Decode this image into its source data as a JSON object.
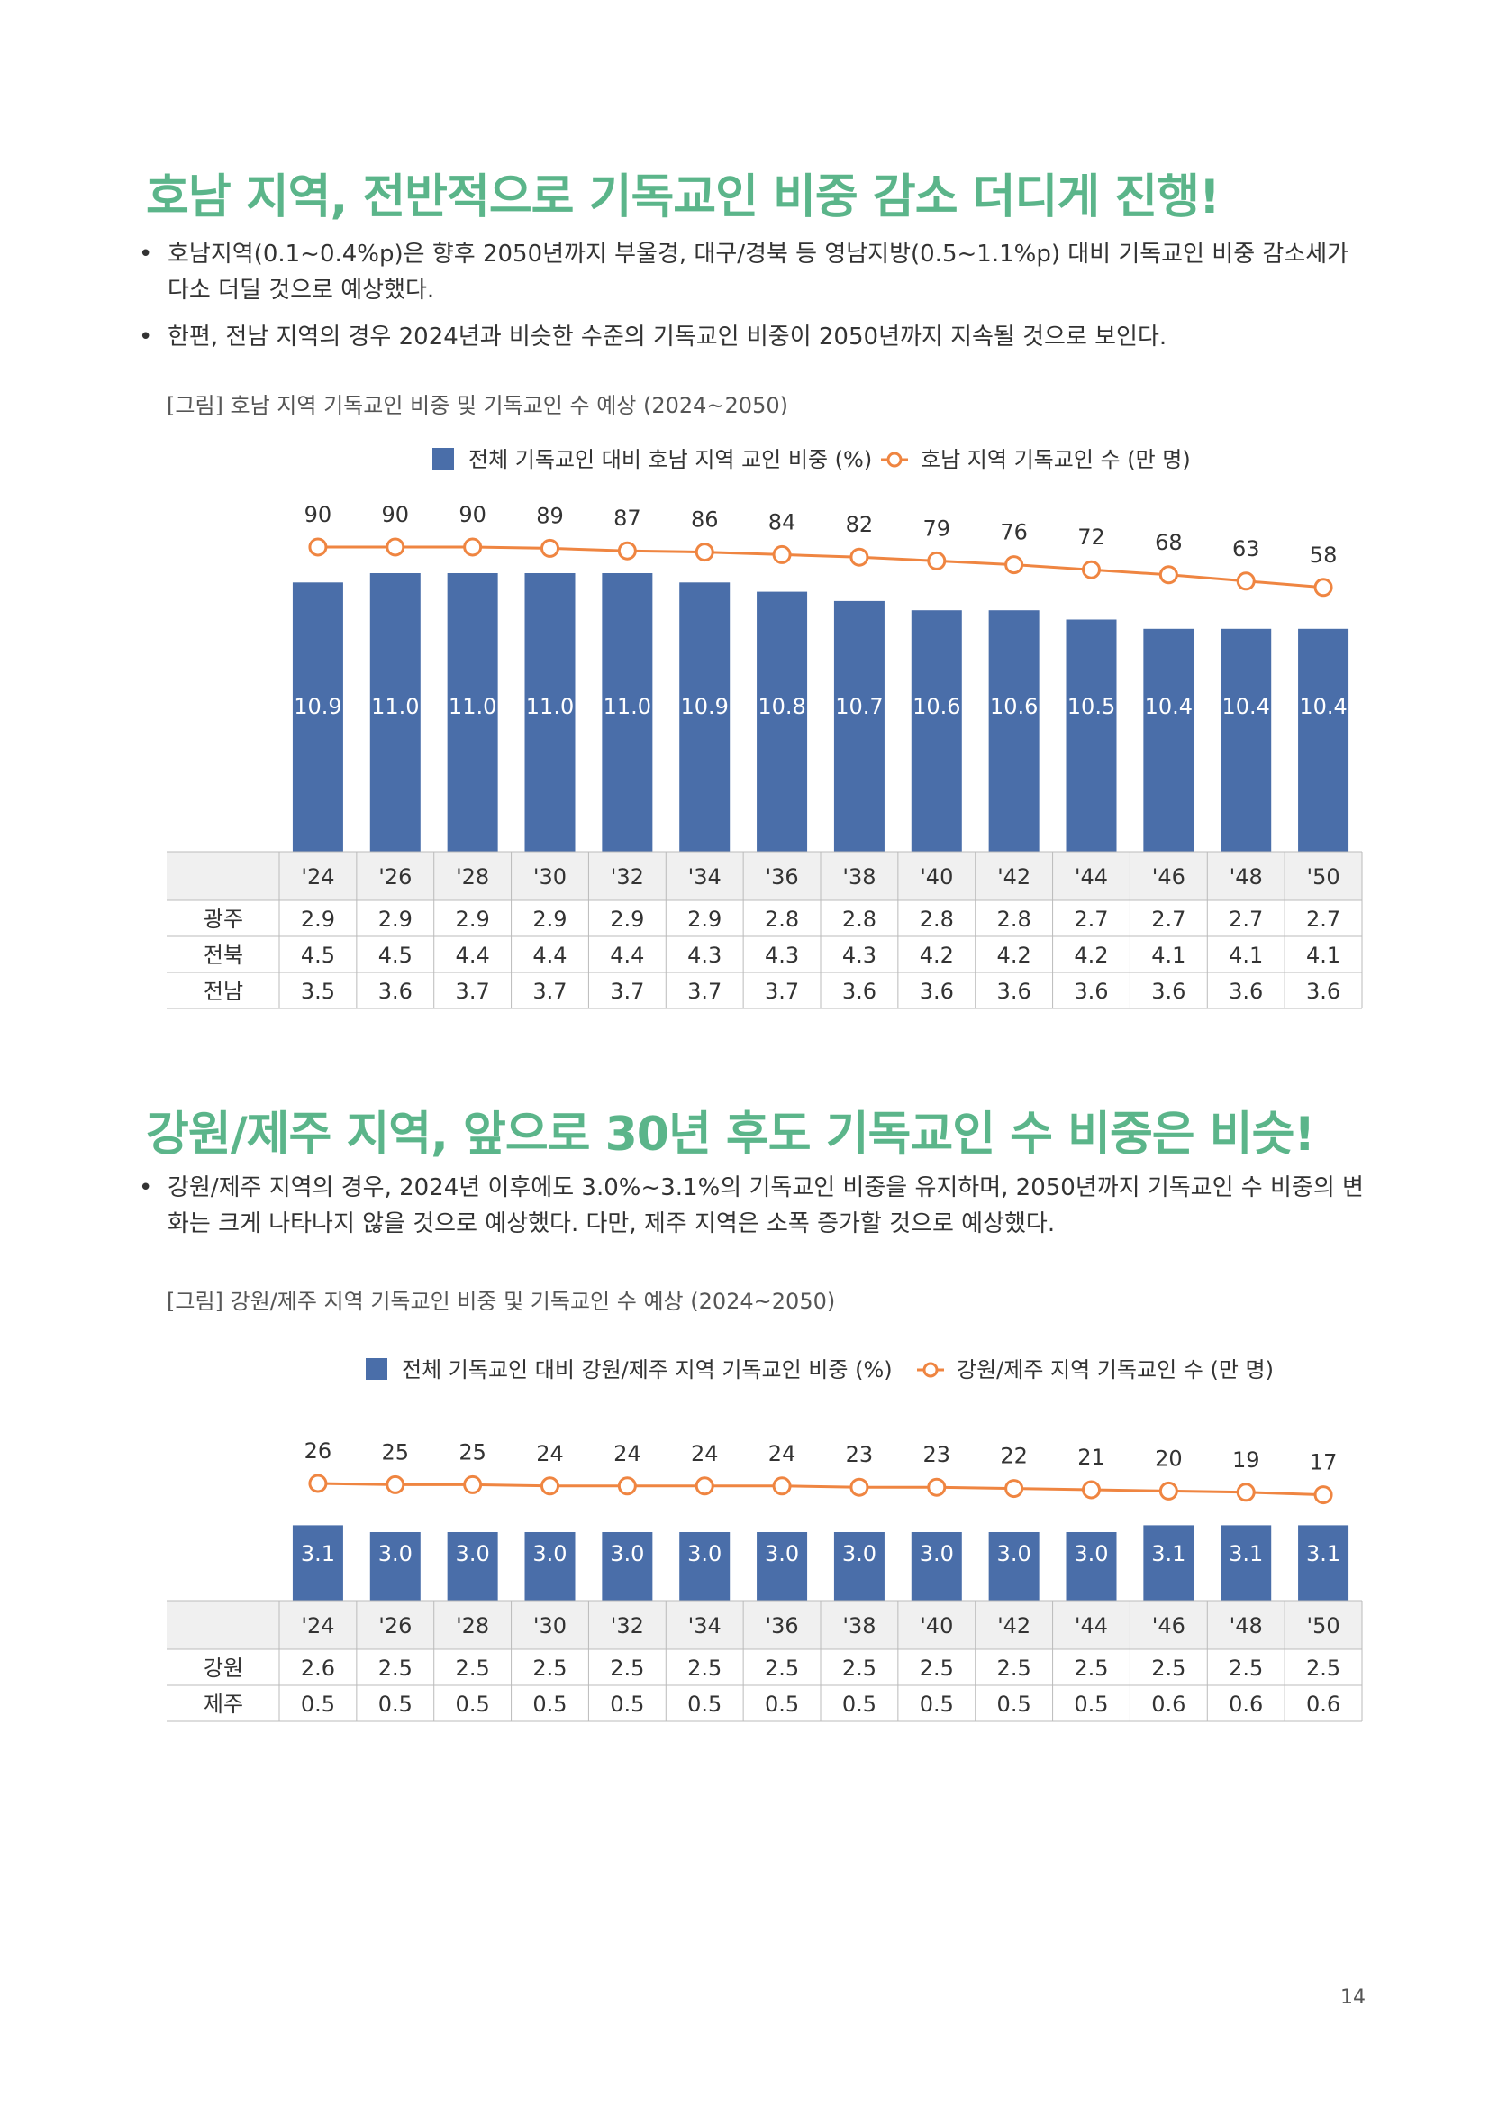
{
  "section1": {
    "heading": "호남 지역, 전반적으로 기독교인 비중 감소 더디게 진행!",
    "bullets": [
      "호남지역(0.1~0.4%p)은 향후 2050년까지 부울경, 대구/경북 등 영남지방(0.5~1.1%p) 대비 기독교인 비중 감소세가 다소 더딜 것으로 예상했다.",
      "한편, 전남 지역의 경우 2024년과 비슷한 수준의 기독교인 비중이 2050년까지 지속될 것으로 보인다."
    ],
    "caption": "[그림] 호남 지역 기독교인 비중 및 기독교인 수 예상 (2024~2050)"
  },
  "section2": {
    "heading": "강원/제주 지역, 앞으로 30년 후도 기독교인 수 비중은 비슷!",
    "bullets": [
      "강원/제주 지역의 경우, 2024년 이후에도 3.0%~3.1%의 기독교인 비중을 유지하며, 2050년까지 기독교인 수 비중의 변화는 크게 나타나지 않을 것으로 예상했다. 다만, 제주 지역은 소폭 증가할 것으로 예상했다."
    ],
    "caption": "[그림] 강원/제주 지역 기독교인 비중 및 기독교인 수 예상 (2024~2050)"
  },
  "page_number": "14",
  "colors": {
    "bar": "#4a6ea9",
    "line": "#ef8541",
    "heading": "#5bb58a",
    "table_header": "#f0f0f0"
  },
  "chart_data": [
    {
      "type": "bar",
      "categories": [
        "'24",
        "'26",
        "'28",
        "'30",
        "'32",
        "'34",
        "'36",
        "'38",
        "'40",
        "'42",
        "'44",
        "'46",
        "'48",
        "'50"
      ],
      "series": [
        {
          "name": "전체 기독교인 대비 호남 지역 교인 비중 (%)",
          "type": "bar",
          "values": [
            10.9,
            11.0,
            11.0,
            11.0,
            11.0,
            10.9,
            10.8,
            10.7,
            10.6,
            10.6,
            10.5,
            10.4,
            10.4,
            10.4
          ]
        },
        {
          "name": "호남 지역 기독교인 수 (만 명)",
          "type": "line",
          "values": [
            90,
            90,
            90,
            89,
            87,
            86,
            84,
            82,
            79,
            76,
            72,
            68,
            63,
            58
          ]
        }
      ],
      "table": {
        "rows": [
          {
            "label": "광주",
            "values": [
              "2.9",
              "2.9",
              "2.9",
              "2.9",
              "2.9",
              "2.9",
              "2.8",
              "2.8",
              "2.8",
              "2.8",
              "2.7",
              "2.7",
              "2.7",
              "2.7"
            ]
          },
          {
            "label": "전북",
            "values": [
              "4.5",
              "4.5",
              "4.4",
              "4.4",
              "4.4",
              "4.3",
              "4.3",
              "4.3",
              "4.2",
              "4.2",
              "4.2",
              "4.1",
              "4.1",
              "4.1"
            ]
          },
          {
            "label": "전남",
            "values": [
              "3.5",
              "3.6",
              "3.7",
              "3.7",
              "3.7",
              "3.7",
              "3.7",
              "3.6",
              "3.6",
              "3.6",
              "3.6",
              "3.6",
              "3.6",
              "3.6"
            ]
          }
        ]
      },
      "legend_position": "top"
    },
    {
      "type": "bar",
      "categories": [
        "'24",
        "'26",
        "'28",
        "'30",
        "'32",
        "'34",
        "'36",
        "'38",
        "'40",
        "'42",
        "'44",
        "'46",
        "'48",
        "'50"
      ],
      "series": [
        {
          "name": "전체 기독교인 대비 강원/제주 지역 기독교인 비중 (%)",
          "type": "bar",
          "values": [
            3.1,
            3.0,
            3.0,
            3.0,
            3.0,
            3.0,
            3.0,
            3.0,
            3.0,
            3.0,
            3.0,
            3.1,
            3.1,
            3.1
          ]
        },
        {
          "name": "강원/제주 지역 기독교인 수 (만 명)",
          "type": "line",
          "values": [
            26,
            25,
            25,
            24,
            24,
            24,
            24,
            23,
            23,
            22,
            21,
            20,
            19,
            17
          ]
        }
      ],
      "table": {
        "rows": [
          {
            "label": "강원",
            "values": [
              "2.6",
              "2.5",
              "2.5",
              "2.5",
              "2.5",
              "2.5",
              "2.5",
              "2.5",
              "2.5",
              "2.5",
              "2.5",
              "2.5",
              "2.5",
              "2.5"
            ]
          },
          {
            "label": "제주",
            "values": [
              "0.5",
              "0.5",
              "0.5",
              "0.5",
              "0.5",
              "0.5",
              "0.5",
              "0.5",
              "0.5",
              "0.5",
              "0.5",
              "0.6",
              "0.6",
              "0.6"
            ]
          }
        ]
      },
      "legend_position": "top"
    }
  ]
}
